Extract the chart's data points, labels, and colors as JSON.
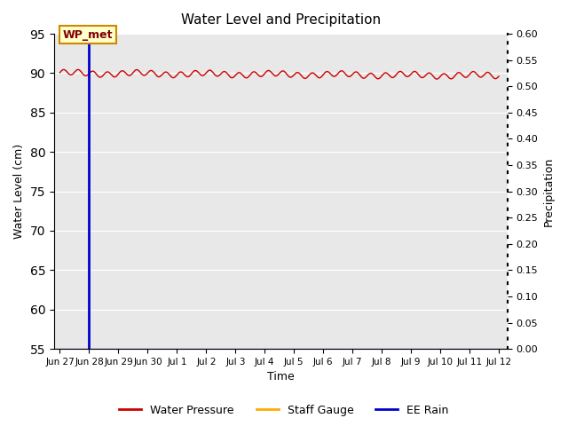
{
  "title": "Water Level and Precipitation",
  "xlabel": "Time",
  "ylabel_left": "Water Level (cm)",
  "ylabel_right": "Precipitation",
  "ylim_left": [
    55,
    95
  ],
  "ylim_right": [
    0.0,
    0.6
  ],
  "yticks_left": [
    55,
    60,
    65,
    70,
    75,
    80,
    85,
    90,
    95
  ],
  "yticks_right": [
    0.0,
    0.05,
    0.1,
    0.15,
    0.2,
    0.25,
    0.3,
    0.35,
    0.4,
    0.45,
    0.5,
    0.55,
    0.6
  ],
  "background_color": "#e8e8e8",
  "wp_color": "#cc0000",
  "sg_color": "#ffaa00",
  "rain_color": "#0000cc",
  "annotation_text": "WP_met",
  "annotation_bg": "#ffffcc",
  "annotation_border": "#cc8800",
  "annotation_text_color": "#800000",
  "vline_x_day": 1.0,
  "water_level_base": 90.0,
  "water_level_amplitude": 0.35,
  "water_level_trend": -0.02,
  "legend_labels": [
    "Water Pressure",
    "Staff Gauge",
    "EE Rain"
  ],
  "legend_colors": [
    "#cc0000",
    "#ffaa00",
    "#0000cc"
  ],
  "tick_labels": [
    "Jun 27",
    "Jun 28",
    "Jun 29",
    "Jun 30",
    "Jul 1",
    "Jul 2",
    "Jul 3",
    "Jul 4",
    "Jul 5",
    "Jul 6",
    "Jul 7",
    "Jul 8",
    "Jul 9",
    "Jul 10",
    "Jul 11",
    "Jul 12"
  ]
}
